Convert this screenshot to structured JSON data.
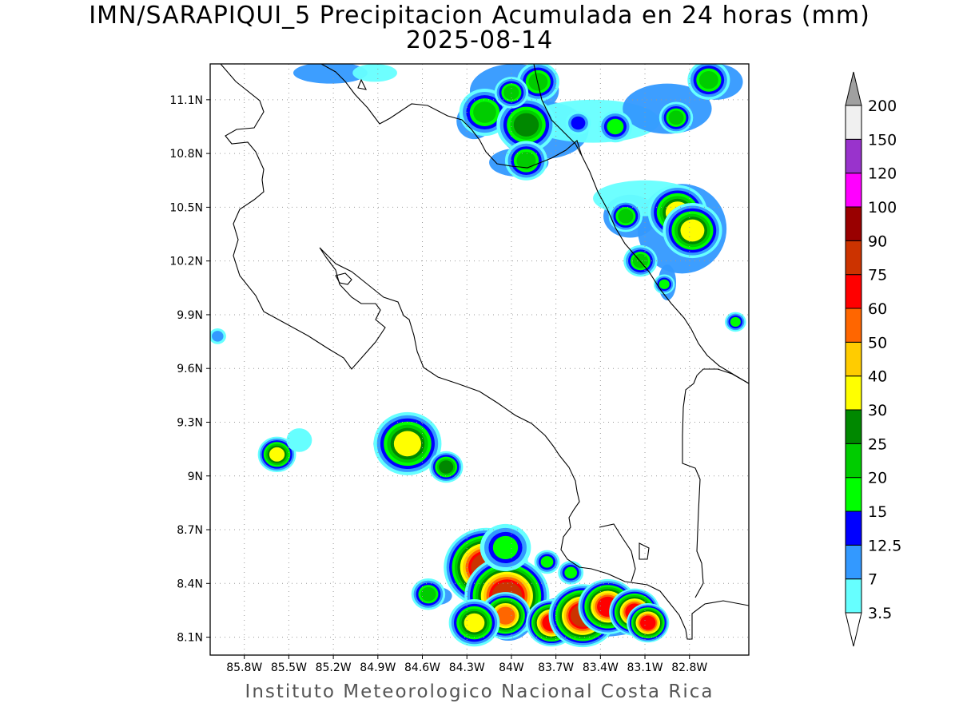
{
  "title": {
    "line1": "IMN/SARAPIQUI_5 Precipitacion Acumulada en 24 horas (mm)",
    "line2": "2025-08-14"
  },
  "credit": "Instituto Meteorologico Nacional Costa Rica",
  "map": {
    "lon_range": [
      -86.03,
      -82.4
    ],
    "lat_range": [
      8.0,
      11.3
    ],
    "grid": true,
    "lat_ticks": [
      {
        "value": 11.1,
        "label": "11.1N"
      },
      {
        "value": 10.8,
        "label": "10.8N"
      },
      {
        "value": 10.5,
        "label": "10.5N"
      },
      {
        "value": 10.2,
        "label": "10.2N"
      },
      {
        "value": 9.9,
        "label": "9.9N"
      },
      {
        "value": 9.6,
        "label": "9.6N"
      },
      {
        "value": 9.3,
        "label": "9.3N"
      },
      {
        "value": 9.0,
        "label": "9N"
      },
      {
        "value": 8.7,
        "label": "8.7N"
      },
      {
        "value": 8.4,
        "label": "8.4N"
      },
      {
        "value": 8.1,
        "label": "8.1N"
      }
    ],
    "lon_ticks": [
      {
        "value": -85.8,
        "label": "85.8W"
      },
      {
        "value": -85.5,
        "label": "85.5W"
      },
      {
        "value": -85.2,
        "label": "85.2W"
      },
      {
        "value": -84.9,
        "label": "84.9W"
      },
      {
        "value": -84.6,
        "label": "84.6W"
      },
      {
        "value": -84.3,
        "label": "84.3W"
      },
      {
        "value": -84.0,
        "label": "84W"
      },
      {
        "value": -83.7,
        "label": "83.7W"
      },
      {
        "value": -83.4,
        "label": "83.4W"
      },
      {
        "value": -83.1,
        "label": "83.1W"
      },
      {
        "value": -82.8,
        "label": "82.8W"
      }
    ]
  },
  "colorbar": {
    "levels": [
      {
        "label": "3.5",
        "color": "#66ffff"
      },
      {
        "label": "7",
        "color": "#3399ff"
      },
      {
        "label": "12.5",
        "color": "#0000ff"
      },
      {
        "label": "15",
        "color": "#00ff00"
      },
      {
        "label": "20",
        "color": "#00cc00"
      },
      {
        "label": "25",
        "color": "#008800"
      },
      {
        "label": "30",
        "color": "#ffff00"
      },
      {
        "label": "40",
        "color": "#ffcc00"
      },
      {
        "label": "50",
        "color": "#ff6600"
      },
      {
        "label": "60",
        "color": "#ff0000"
      },
      {
        "label": "75",
        "color": "#cc3300"
      },
      {
        "label": "90",
        "color": "#990000"
      },
      {
        "label": "100",
        "color": "#ff00ff"
      },
      {
        "label": "120",
        "color": "#9933cc"
      },
      {
        "label": "150",
        "color": "#f0f0f0"
      },
      {
        "label": "200",
        "color": "#a0a0a0"
      }
    ],
    "under_color": "#ffffff",
    "over_color": "#a0a0a0"
  },
  "precip_cells": [
    {
      "lon": -85.58,
      "lat": 9.12,
      "r": 0.045,
      "mm": 30
    },
    {
      "lon": -84.7,
      "lat": 9.18,
      "r": 0.08,
      "mm": 30
    },
    {
      "lon": -84.44,
      "lat": 9.05,
      "r": 0.04,
      "mm": 25
    },
    {
      "lon": -85.98,
      "lat": 9.78,
      "r": 0.02,
      "mm": 7
    },
    {
      "lon": -85.43,
      "lat": 9.2,
      "r": 0.03,
      "mm": 3.5
    },
    {
      "lon": -84.17,
      "lat": 8.49,
      "r": 0.1,
      "mm": 75
    },
    {
      "lon": -84.03,
      "lat": 8.33,
      "r": 0.1,
      "mm": 75
    },
    {
      "lon": -84.04,
      "lat": 8.22,
      "r": 0.06,
      "mm": 50
    },
    {
      "lon": -84.25,
      "lat": 8.18,
      "r": 0.06,
      "mm": 30
    },
    {
      "lon": -83.73,
      "lat": 8.18,
      "r": 0.06,
      "mm": 60
    },
    {
      "lon": -83.52,
      "lat": 8.22,
      "r": 0.08,
      "mm": 75
    },
    {
      "lon": -83.35,
      "lat": 8.27,
      "r": 0.07,
      "mm": 60
    },
    {
      "lon": -83.17,
      "lat": 8.24,
      "r": 0.06,
      "mm": 60
    },
    {
      "lon": -83.08,
      "lat": 8.18,
      "r": 0.05,
      "mm": 60
    },
    {
      "lon": -84.56,
      "lat": 8.34,
      "r": 0.04,
      "mm": 20
    },
    {
      "lon": -83.76,
      "lat": 8.52,
      "r": 0.03,
      "mm": 15
    },
    {
      "lon": -83.6,
      "lat": 8.46,
      "r": 0.03,
      "mm": 15
    },
    {
      "lon": -84.04,
      "lat": 8.6,
      "r": 0.06,
      "mm": 15
    },
    {
      "lon": -82.88,
      "lat": 10.47,
      "r": 0.07,
      "mm": 30
    },
    {
      "lon": -82.78,
      "lat": 10.37,
      "r": 0.07,
      "mm": 30
    },
    {
      "lon": -83.13,
      "lat": 10.2,
      "r": 0.04,
      "mm": 20
    },
    {
      "lon": -83.23,
      "lat": 10.45,
      "r": 0.04,
      "mm": 20
    },
    {
      "lon": -82.97,
      "lat": 10.07,
      "r": 0.025,
      "mm": 15
    },
    {
      "lon": -82.49,
      "lat": 9.86,
      "r": 0.025,
      "mm": 15
    },
    {
      "lon": -84.18,
      "lat": 11.03,
      "r": 0.06,
      "mm": 20
    },
    {
      "lon": -83.9,
      "lat": 10.96,
      "r": 0.07,
      "mm": 25
    },
    {
      "lon": -83.82,
      "lat": 11.2,
      "r": 0.05,
      "mm": 20
    },
    {
      "lon": -84.0,
      "lat": 11.14,
      "r": 0.04,
      "mm": 20
    },
    {
      "lon": -83.9,
      "lat": 10.76,
      "r": 0.05,
      "mm": 20
    },
    {
      "lon": -82.67,
      "lat": 11.21,
      "r": 0.05,
      "mm": 20
    },
    {
      "lon": -82.89,
      "lat": 11.0,
      "r": 0.04,
      "mm": 20
    },
    {
      "lon": -83.3,
      "lat": 10.95,
      "r": 0.04,
      "mm": 15
    },
    {
      "lon": -83.55,
      "lat": 10.97,
      "r": 0.03,
      "mm": 12.5
    }
  ],
  "precip_light": [
    {
      "lon": -85.22,
      "lat": 11.25,
      "rx": 0.25,
      "ry": 0.06,
      "mm": 7
    },
    {
      "lon": -84.92,
      "lat": 11.25,
      "rx": 0.15,
      "ry": 0.05,
      "mm": 3.5
    },
    {
      "lon": -84.25,
      "lat": 10.98,
      "rx": 0.12,
      "ry": 0.1,
      "mm": 7
    },
    {
      "lon": -83.98,
      "lat": 11.15,
      "rx": 0.3,
      "ry": 0.15,
      "mm": 7
    },
    {
      "lon": -83.78,
      "lat": 10.93,
      "rx": 0.3,
      "ry": 0.16,
      "mm": 7
    },
    {
      "lon": -83.95,
      "lat": 10.75,
      "rx": 0.2,
      "ry": 0.08,
      "mm": 7
    },
    {
      "lon": -83.45,
      "lat": 10.98,
      "rx": 0.45,
      "ry": 0.12,
      "mm": 3.5
    },
    {
      "lon": -82.95,
      "lat": 11.05,
      "rx": 0.3,
      "ry": 0.14,
      "mm": 7
    },
    {
      "lon": -82.62,
      "lat": 11.2,
      "rx": 0.18,
      "ry": 0.1,
      "mm": 7
    },
    {
      "lon": -82.85,
      "lat": 10.38,
      "rx": 0.3,
      "ry": 0.25,
      "mm": 7
    },
    {
      "lon": -83.2,
      "lat": 10.45,
      "rx": 0.18,
      "ry": 0.12,
      "mm": 7
    },
    {
      "lon": -83.12,
      "lat": 10.2,
      "rx": 0.1,
      "ry": 0.07,
      "mm": 7
    },
    {
      "lon": -82.95,
      "lat": 10.08,
      "rx": 0.06,
      "ry": 0.1,
      "mm": 7
    },
    {
      "lon": -83.1,
      "lat": 10.55,
      "rx": 0.35,
      "ry": 0.1,
      "mm": 3.5
    },
    {
      "lon": -84.12,
      "lat": 8.45,
      "rx": 0.25,
      "ry": 0.18,
      "mm": 7
    },
    {
      "lon": -84.02,
      "lat": 8.28,
      "rx": 0.2,
      "ry": 0.2,
      "mm": 7
    },
    {
      "lon": -83.45,
      "lat": 8.22,
      "rx": 0.45,
      "ry": 0.12,
      "mm": 7
    },
    {
      "lon": -84.5,
      "lat": 8.33,
      "rx": 0.1,
      "ry": 0.05,
      "mm": 7
    },
    {
      "lon": -84.75,
      "lat": 9.18,
      "rx": 0.18,
      "ry": 0.08,
      "mm": 7
    }
  ]
}
